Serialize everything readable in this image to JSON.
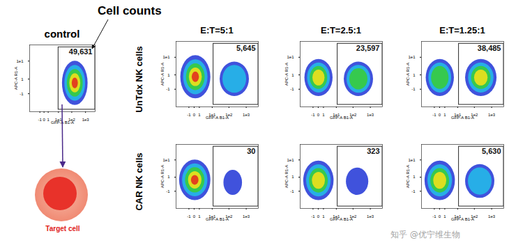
{
  "annotation": "Cell counts",
  "target_label": "Target cell",
  "row_labels": [
    "UnTdx NK cells",
    "CAR NK cells"
  ],
  "column_labels": [
    "E:T=5:1",
    "E:T=2.5:1",
    "E:T=1.25:1"
  ],
  "watermark": "知乎 @优宁维生物",
  "chart_data": [
    {
      "type": "scatter",
      "title": "control",
      "x_label": "GFP-A B1-A",
      "y_label": "APC-A R1-A",
      "xlim": [
        -10,
        5000
      ],
      "xticks": [
        -1,
        0,
        1,
        {
          "value": 10,
          "label": "1e1"
        },
        {
          "value": 100,
          "label": "1e2"
        },
        {
          "value": 1000,
          "label": "1e3"
        }
      ],
      "ylim": [
        -10,
        50
      ],
      "yticks": [
        -1,
        1,
        {
          "value": 10,
          "label": "1e1"
        }
      ],
      "gate": {
        "x": [
          10,
          5000
        ],
        "y": [
          -8,
          40
        ],
        "count": 49631,
        "count_label": "49,631"
      },
      "populations": [
        {
          "x": [
            20,
            1500
          ],
          "y": [
            -5,
            10
          ],
          "levels": 5
        }
      ]
    },
    {
      "type": "scatter",
      "x_label": "GFP-A B1-A",
      "y_label": "APC-A R1-A",
      "xlim": [
        -10,
        5000
      ],
      "xticks": [
        -1,
        0,
        1,
        {
          "value": 10,
          "label": "1e1"
        },
        {
          "value": 100,
          "label": "1e2"
        },
        {
          "value": 1000,
          "label": "1e3"
        }
      ],
      "ylim": [
        -10,
        50
      ],
      "yticks": [
        -1,
        1,
        {
          "value": 10,
          "label": "1e1"
        }
      ],
      "gate": {
        "x": [
          12,
          5000
        ],
        "y": [
          -8,
          40
        ],
        "count": 5645,
        "count_label": "5,645"
      },
      "populations": [
        {
          "x": [
            -5,
            8
          ],
          "y": [
            -4,
            12
          ],
          "levels": 5
        },
        {
          "x": [
            30,
            1500
          ],
          "y": [
            -3,
            6
          ],
          "levels": 2
        }
      ]
    },
    {
      "type": "scatter",
      "x_label": "GFP-A B1-A",
      "y_label": "APC-A R1-A",
      "xlim": [
        -10,
        5000
      ],
      "xticks": [
        -1,
        0,
        1,
        {
          "value": 10,
          "label": "1e1"
        },
        {
          "value": 100,
          "label": "1e2"
        },
        {
          "value": 1000,
          "label": "1e3"
        }
      ],
      "ylim": [
        -10,
        50
      ],
      "yticks": [
        -1,
        1,
        {
          "value": 10,
          "label": "1e1"
        }
      ],
      "gate": {
        "x": [
          12,
          5000
        ],
        "y": [
          -8,
          40
        ],
        "count": 23597,
        "count_label": "23,597"
      },
      "populations": [
        {
          "x": [
            -5,
            6
          ],
          "y": [
            -3,
            8
          ],
          "levels": 4
        },
        {
          "x": [
            30,
            1500
          ],
          "y": [
            -3,
            6
          ],
          "levels": 3
        }
      ]
    },
    {
      "type": "scatter",
      "x_label": "GFP-A B1-A",
      "y_label": "APC-A R1-A",
      "xlim": [
        -10,
        5000
      ],
      "xticks": [
        -1,
        0,
        1,
        {
          "value": 10,
          "label": "1e1"
        },
        {
          "value": 100,
          "label": "1e2"
        },
        {
          "value": 1000,
          "label": "1e3"
        }
      ],
      "ylim": [
        -10,
        50
      ],
      "yticks": [
        -1,
        1,
        {
          "value": 10,
          "label": "1e1"
        }
      ],
      "gate": {
        "x": [
          12,
          5000
        ],
        "y": [
          -8,
          40
        ],
        "count": 38485,
        "count_label": "38,485"
      },
      "populations": [
        {
          "x": [
            -5,
            6
          ],
          "y": [
            -3,
            8
          ],
          "levels": 3
        },
        {
          "x": [
            30,
            2000
          ],
          "y": [
            -3,
            8
          ],
          "levels": 4
        }
      ]
    },
    {
      "type": "scatter",
      "x_label": "GFP-A B1-A",
      "y_label": "APC-A R1-A",
      "xlim": [
        -10,
        5000
      ],
      "xticks": [
        -1,
        0,
        1,
        {
          "value": 10,
          "label": "1e1"
        },
        {
          "value": 100,
          "label": "1e2"
        },
        {
          "value": 1000,
          "label": "1e3"
        }
      ],
      "ylim": [
        -10,
        50
      ],
      "yticks": [
        -1,
        1,
        {
          "value": 10,
          "label": "1e1"
        }
      ],
      "gate": {
        "x": [
          12,
          5000
        ],
        "y": [
          -8,
          40
        ],
        "count": 30
      },
      "populations": [
        {
          "x": [
            -6,
            8
          ],
          "y": [
            -4,
            10
          ],
          "levels": 5
        },
        {
          "x": [
            50,
            600
          ],
          "y": [
            -2,
            3
          ],
          "levels": 1
        }
      ]
    },
    {
      "type": "scatter",
      "x_label": "GFP-A B1-A",
      "y_label": "APC-A R1-A",
      "xlim": [
        -10,
        5000
      ],
      "xticks": [
        -1,
        0,
        1,
        {
          "value": 10,
          "label": "1e1"
        },
        {
          "value": 100,
          "label": "1e2"
        },
        {
          "value": 1000,
          "label": "1e3"
        }
      ],
      "ylim": [
        -10,
        50
      ],
      "yticks": [
        -1,
        1,
        {
          "value": 10,
          "label": "1e1"
        }
      ],
      "gate": {
        "x": [
          12,
          5000
        ],
        "y": [
          -8,
          40
        ],
        "count": 323
      },
      "populations": [
        {
          "x": [
            -6,
            7
          ],
          "y": [
            -4,
            9
          ],
          "levels": 4
        },
        {
          "x": [
            40,
            800
          ],
          "y": [
            -2,
            4
          ],
          "levels": 1
        }
      ]
    },
    {
      "type": "scatter",
      "x_label": "GFP-A B1-A",
      "y_label": "APC-A R1-A",
      "xlim": [
        -10,
        5000
      ],
      "xticks": [
        -1,
        0,
        1,
        {
          "value": 10,
          "label": "1e1"
        },
        {
          "value": 100,
          "label": "1e2"
        },
        {
          "value": 1000,
          "label": "1e3"
        }
      ],
      "ylim": [
        -10,
        50
      ],
      "yticks": [
        -1,
        1,
        {
          "value": 10,
          "label": "1e1"
        }
      ],
      "gate": {
        "x": [
          12,
          5000
        ],
        "y": [
          -8,
          40
        ],
        "count": 5630,
        "count_label": "5,630"
      },
      "populations": [
        {
          "x": [
            -6,
            7
          ],
          "y": [
            -4,
            9
          ],
          "levels": 4
        },
        {
          "x": [
            30,
            1500
          ],
          "y": [
            -3,
            6
          ],
          "levels": 2
        }
      ]
    }
  ]
}
